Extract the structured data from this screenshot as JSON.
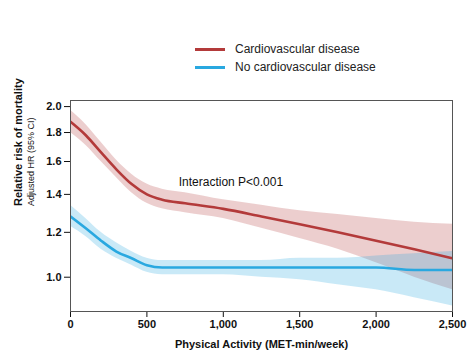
{
  "chart_data": {
    "type": "line",
    "y_label": [
      "Relative risk of mortality",
      "Adjusted HR (95% CI)"
    ],
    "x_label": "Physical Activity (MET-min/week)",
    "legend": "top",
    "xlim": [
      0,
      2500
    ],
    "xticks": [
      0,
      500,
      {
        "value": 1000,
        "label": "1,000"
      },
      {
        "value": 1500,
        "label": "1,500"
      },
      {
        "value": 2000,
        "label": "2,000"
      },
      {
        "value": 2500,
        "label": "2,500"
      }
    ],
    "ylim": [
      0.87,
      2.05
    ],
    "yticks": [
      {
        "value": 1,
        "label": "1.0"
      },
      1.2,
      1.4,
      1.6,
      1.8,
      {
        "value": 2,
        "label": "2.0"
      }
    ],
    "log": "y",
    "x": [
      0,
      100,
      200,
      300,
      400,
      500,
      600,
      750,
      1000,
      1250,
      1500,
      1750,
      2000,
      2250,
      2500
    ],
    "series": [
      {
        "name": "Cardiovascular disease",
        "color": "#b33a3a",
        "values": [
          1.88,
          1.78,
          1.66,
          1.55,
          1.46,
          1.4,
          1.37,
          1.35,
          1.32,
          1.28,
          1.24,
          1.2,
          1.16,
          1.12,
          1.08
        ],
        "lower": [
          1.8,
          1.71,
          1.6,
          1.5,
          1.41,
          1.35,
          1.32,
          1.3,
          1.27,
          1.22,
          1.17,
          1.12,
          1.06,
          1.0,
          0.95
        ],
        "upper": [
          1.97,
          1.86,
          1.73,
          1.61,
          1.52,
          1.46,
          1.43,
          1.41,
          1.37,
          1.34,
          1.31,
          1.29,
          1.27,
          1.25,
          1.24
        ]
      },
      {
        "name": "No cardiovascular disease",
        "color": "#29a8e0",
        "values": [
          1.28,
          1.22,
          1.16,
          1.11,
          1.08,
          1.05,
          1.04,
          1.04,
          1.04,
          1.04,
          1.04,
          1.04,
          1.04,
          1.03,
          1.03
        ],
        "lower": [
          1.23,
          1.18,
          1.12,
          1.08,
          1.05,
          1.02,
          1.01,
          1.01,
          1.01,
          1.0,
          0.99,
          0.97,
          0.95,
          0.92,
          0.89
        ],
        "upper": [
          1.34,
          1.27,
          1.2,
          1.15,
          1.11,
          1.08,
          1.07,
          1.07,
          1.07,
          1.07,
          1.08,
          1.08,
          1.09,
          1.1,
          1.11
        ]
      }
    ],
    "annotations": [
      {
        "text": "Interaction P<0.001",
        "x": 1050,
        "y": 1.47
      }
    ]
  }
}
